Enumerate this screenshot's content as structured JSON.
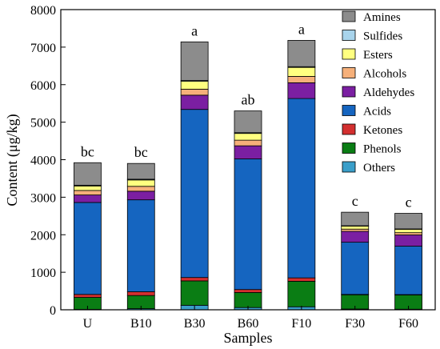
{
  "chart_data": {
    "type": "bar",
    "stacked": true,
    "xlabel": "Samples",
    "ylabel": "Content (μg/kg)",
    "ylim": [
      0,
      8000
    ],
    "yticks": [
      0,
      1000,
      2000,
      3000,
      4000,
      5000,
      6000,
      7000,
      8000
    ],
    "categories": [
      "U",
      "B10",
      "B30",
      "B60",
      "F10",
      "F30",
      "F60"
    ],
    "significance_labels": [
      "bc",
      "bc",
      "a",
      "ab",
      "a",
      "c",
      "c"
    ],
    "series": [
      {
        "name": "Others",
        "color": "#3a9ec9",
        "values": [
          10,
          30,
          120,
          60,
          80,
          20,
          15
        ]
      },
      {
        "name": "Phenols",
        "color": "#0a7d14",
        "values": [
          320,
          350,
          650,
          400,
          680,
          380,
          380
        ]
      },
      {
        "name": "Ketones",
        "color": "#d32f2f",
        "values": [
          80,
          100,
          90,
          80,
          90,
          10,
          10
        ]
      },
      {
        "name": "Acids",
        "color": "#1565c0",
        "values": [
          2450,
          2450,
          4480,
          3480,
          4780,
          1390,
          1290
        ]
      },
      {
        "name": "Aldehydes",
        "color": "#7b1fa2",
        "values": [
          200,
          230,
          380,
          350,
          420,
          290,
          300
        ]
      },
      {
        "name": "Alcohols",
        "color": "#f6b07a",
        "values": [
          120,
          130,
          160,
          150,
          170,
          60,
          60
        ]
      },
      {
        "name": "Esters",
        "color": "#ffff80",
        "values": [
          120,
          170,
          210,
          180,
          240,
          80,
          90
        ]
      },
      {
        "name": "Sulfides",
        "color": "#a8d4ec",
        "values": [
          20,
          20,
          20,
          20,
          20,
          10,
          10
        ]
      },
      {
        "name": "Amines",
        "color": "#8c8c8c",
        "values": [
          600,
          420,
          1030,
          580,
          700,
          360,
          415
        ]
      }
    ],
    "legend_placement": "top-right",
    "grid": false
  }
}
